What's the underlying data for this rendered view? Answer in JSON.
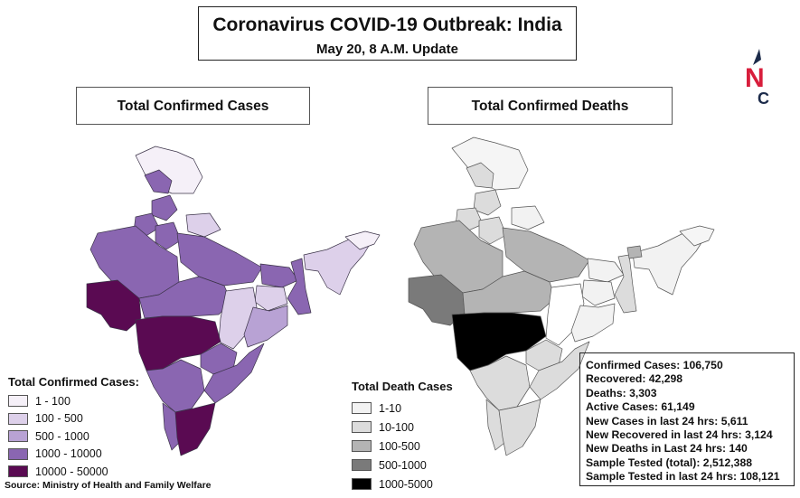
{
  "header": {
    "title": "Coronavirus COVID-19 Outbreak: India",
    "subtitle": "May 20, 8 A.M. Update"
  },
  "panels": {
    "left_title": "Total Confirmed Cases",
    "right_title": "Total Confirmed Deaths"
  },
  "logo": {
    "letters": "NC",
    "icon": "nc-logo"
  },
  "legend_cases": {
    "title": "Total Confirmed Cases:",
    "items": [
      {
        "label": "1 - 100",
        "color": "#f5f0f8"
      },
      {
        "label": "100 - 500",
        "color": "#ddd0ea"
      },
      {
        "label": "500 - 1000",
        "color": "#b8a2d4"
      },
      {
        "label": "1000 - 10000",
        "color": "#8a66b1"
      },
      {
        "label": "10000 - 50000",
        "color": "#5a0a52"
      }
    ]
  },
  "legend_deaths": {
    "title": "Total Death Cases",
    "items": [
      {
        "label": "1-10",
        "color": "#f2f2f2"
      },
      {
        "label": "10-100",
        "color": "#dcdcdc"
      },
      {
        "label": "100-500",
        "color": "#b4b4b4"
      },
      {
        "label": "500-1000",
        "color": "#7a7a7a"
      },
      {
        "label": "1000-5000",
        "color": "#000000"
      }
    ]
  },
  "stats": [
    "Confirmed Cases: 106,750",
    "Recovered: 42,298",
    "Deaths: 3,303",
    "Active Cases: 61,149",
    "New Cases in last 24 hrs: 5,611",
    "New Recovered in last 24 hrs: 3,124",
    "New Deaths in Last 24 hrs: 140",
    "Sample Tested (total): 2,512,388",
    "Sample Tested in last 24 hrs: 108,121"
  ],
  "source": "Source: Ministry of Health and Family Welfare"
}
